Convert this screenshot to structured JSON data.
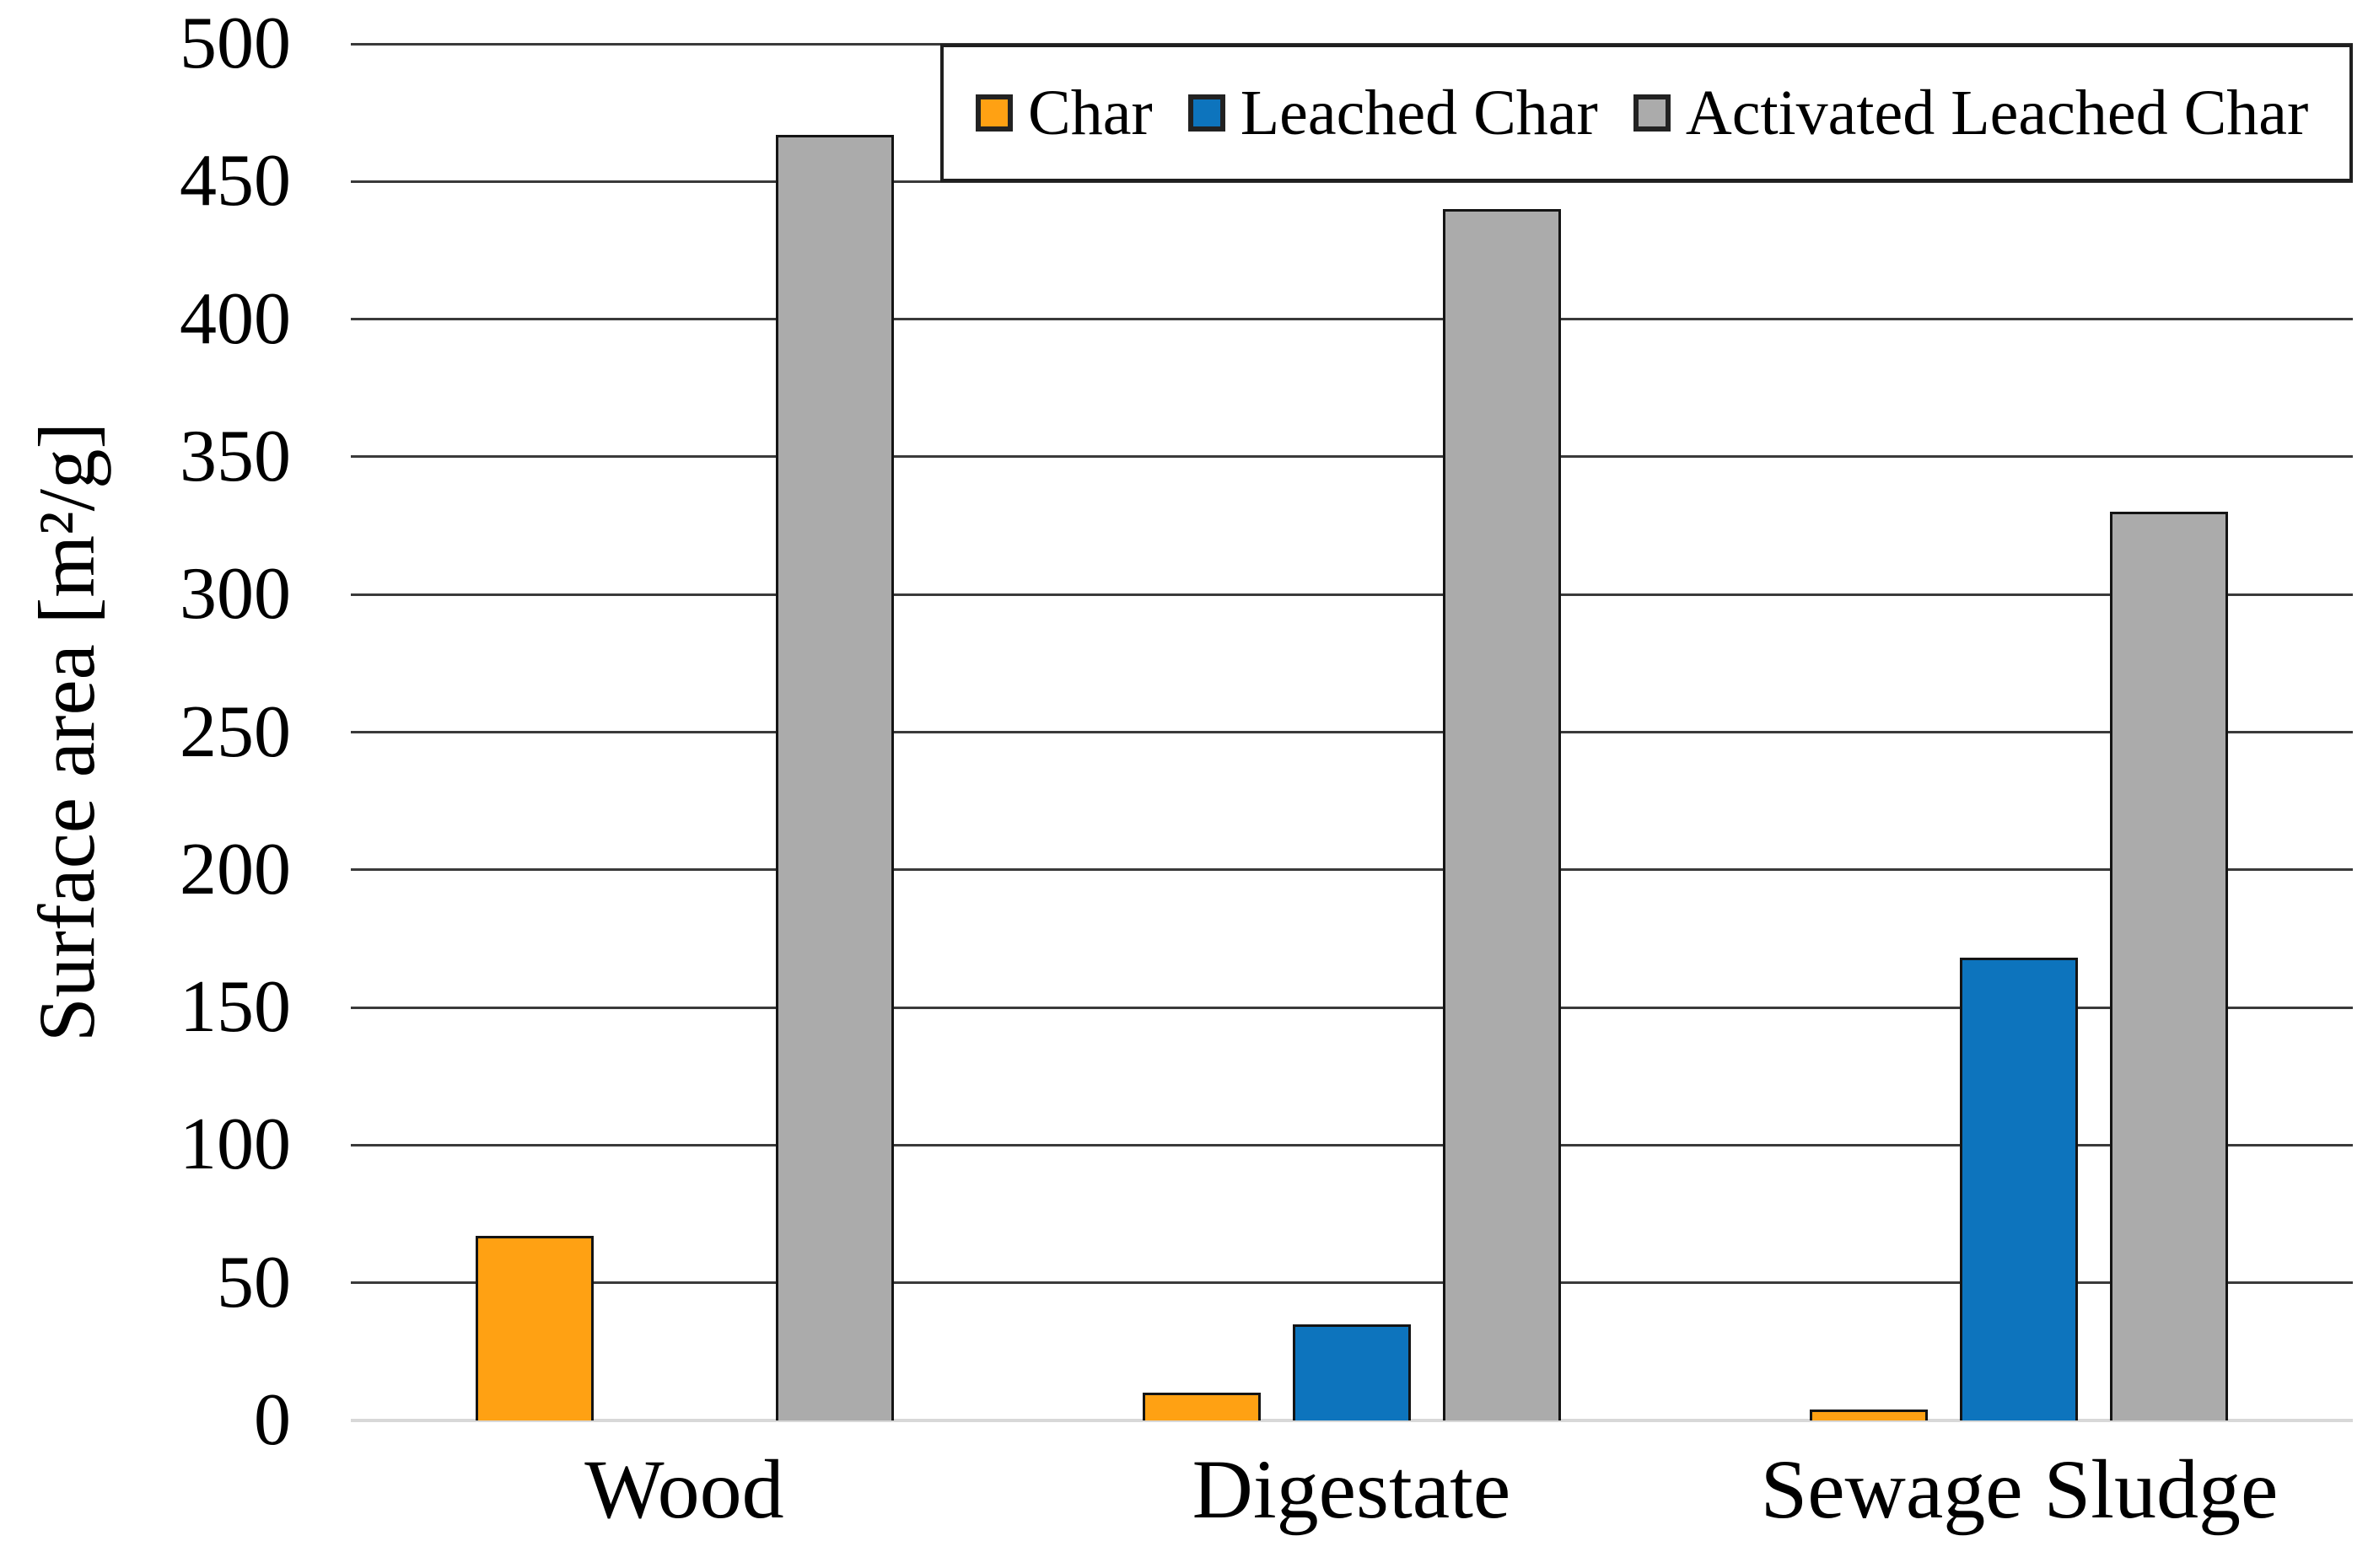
{
  "chart_data": {
    "type": "bar",
    "title": "",
    "xlabel": "",
    "ylabel": "Surface area [m²/g]",
    "ylim": [
      0,
      500
    ],
    "ytick_interval": 50,
    "yticks": [
      500,
      450,
      400,
      350,
      300,
      250,
      200,
      150,
      100,
      50,
      0
    ],
    "categories": [
      "Wood",
      "Digestate",
      "Sewage Sludge"
    ],
    "series": [
      {
        "name": "Char",
        "color": "#FFA113",
        "values": [
          67,
          10,
          4
        ]
      },
      {
        "name": "Leached Char",
        "color": "#0D74BD",
        "values": [
          null,
          35,
          168
        ]
      },
      {
        "name": "Activated Leached Char",
        "color": "#ABABAB",
        "values": [
          467,
          440,
          330
        ]
      }
    ],
    "legend": {
      "position": "top-right-inside",
      "entries": [
        "Char",
        "Leached Char",
        "Activated Leached Char"
      ]
    },
    "grid": "horizontal",
    "colors": {
      "gridline": "#3A3A3A",
      "baseline": "#D8D8D8",
      "bar_border": "#141414",
      "legend_border": "#1F1F1F",
      "text": "#000000",
      "background": "#FFFFFF"
    }
  }
}
